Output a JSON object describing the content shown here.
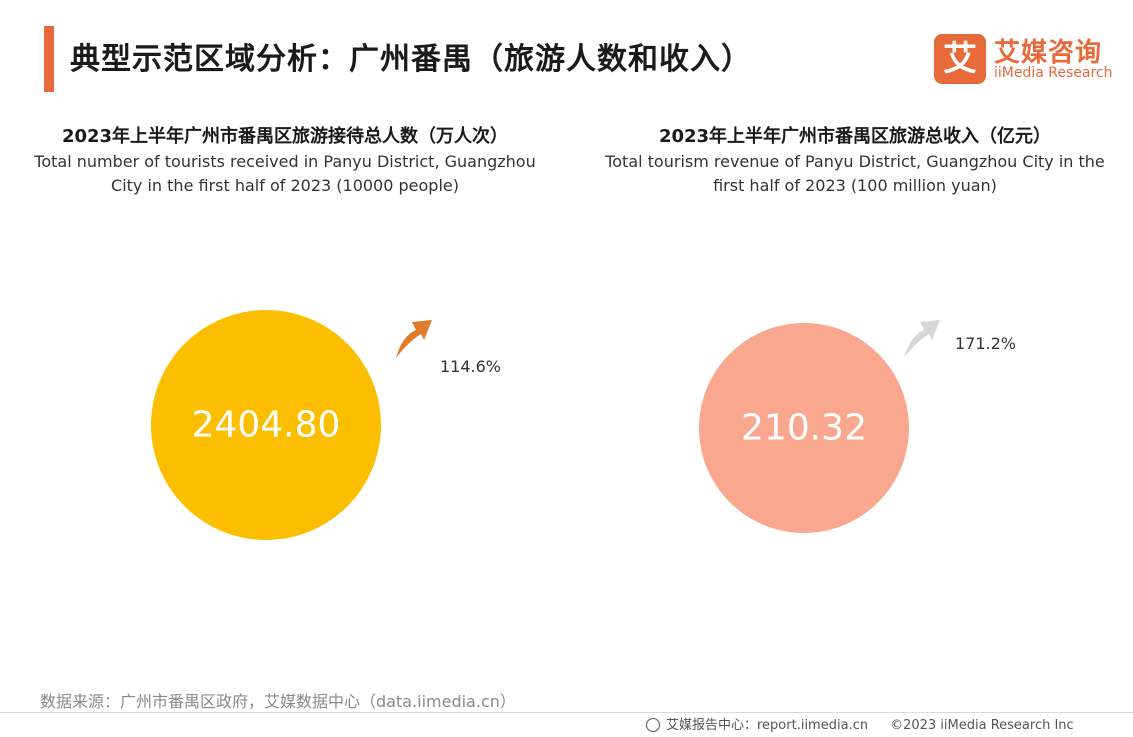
{
  "header": {
    "title": "典型示范区域分析：广州番禺（旅游人数和收入）",
    "logo_mark": "艾",
    "logo_cn": "艾媒咨询",
    "logo_en": "iiMedia Research"
  },
  "colors": {
    "accent": "#e8693a",
    "left_circle": "#fbbf00",
    "right_circle": "#f9a88f",
    "arrow_up_orange": "#e07b2a",
    "arrow_up_gray": "#d6d6d6"
  },
  "chart_data": [
    {
      "type": "bubble",
      "title_cn": "2023年上半年广州市番禺区旅游接待总人数（万人次）",
      "title_en": "Total number of tourists received in Panyu District, Guangzhou City in the first half of 2023 (10000 people)",
      "value": 2404.8,
      "value_label": "2404.80",
      "growth": 114.6,
      "growth_label": "114.6%",
      "arrow": "up-orange"
    },
    {
      "type": "bubble",
      "title_cn": "2023年上半年广州市番禺区旅游总收入（亿元）",
      "title_en": "Total tourism revenue of Panyu District, Guangzhou City in the first half of 2023 (100 million yuan)",
      "value": 210.32,
      "value_label": "210.32",
      "growth": 171.2,
      "growth_label": "171.2%",
      "arrow": "up-gray"
    }
  ],
  "footer": {
    "source": "数据来源：广州市番禺区政府，艾媒数据中心（data.iimedia.cn）",
    "report": "艾媒报告中心：report.iimedia.cn",
    "copyright": "©2023  iiMedia Research  Inc"
  }
}
